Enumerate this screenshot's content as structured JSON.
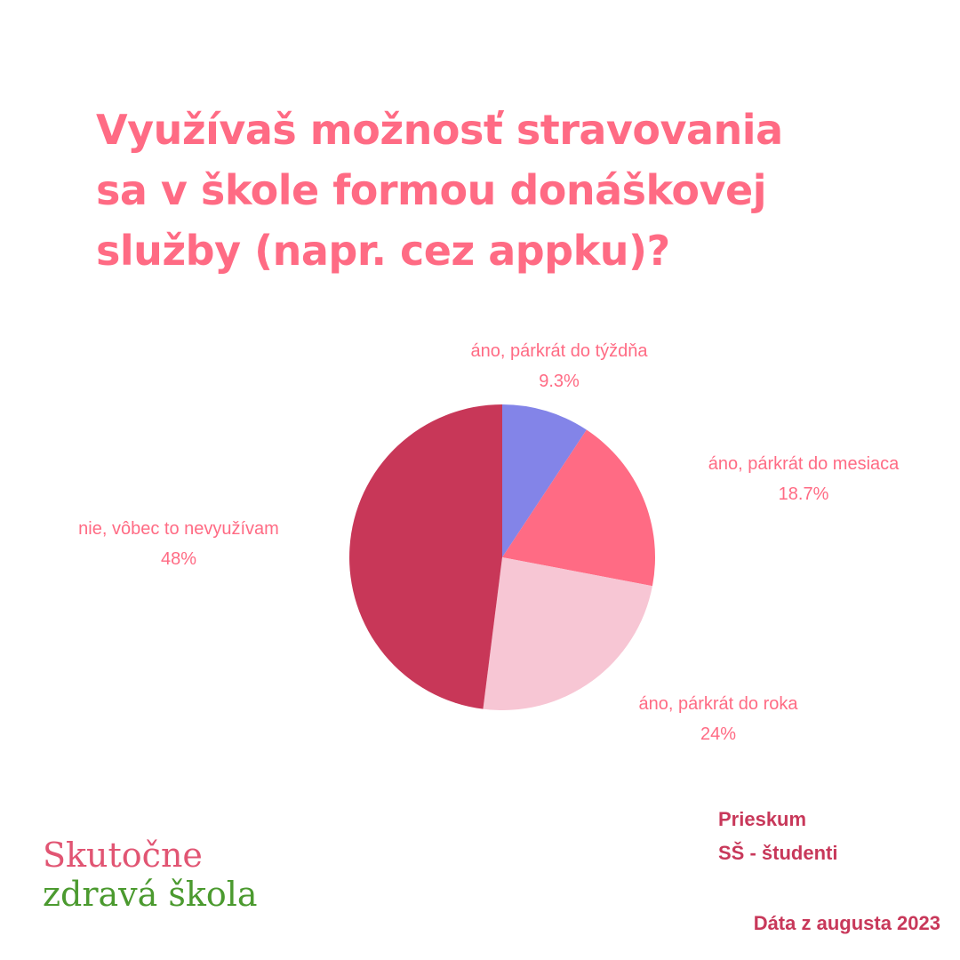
{
  "title_lines": [
    "Využívaš možnosť stravovania",
    "sa v škole formou donáškovej",
    "služby (napr. cez appku)?"
  ],
  "chart_data": {
    "type": "pie",
    "slices": [
      {
        "label": "áno, párkrát do týždňa",
        "value": 9.3,
        "display": "9.3%",
        "color": "#8384e8"
      },
      {
        "label": "áno, párkrát do mesiaca",
        "value": 18.7,
        "display": "18.7%",
        "color": "#ff6b84"
      },
      {
        "label": "áno, párkrát do roka",
        "value": 24,
        "display": "24%",
        "color": "#f7c6d4"
      },
      {
        "label": "nie, vôbec to nevyužívam",
        "value": 48,
        "display": "48%",
        "color": "#c83758"
      }
    ],
    "start_angle": "12 o'clock",
    "direction": "clockwise"
  },
  "survey": {
    "line1": "Prieskum",
    "line2": "SŠ - študenti",
    "date": "Dáta z augusta 2023"
  },
  "logo": {
    "line1": "Skutočne",
    "line2": "zdravá škola"
  }
}
